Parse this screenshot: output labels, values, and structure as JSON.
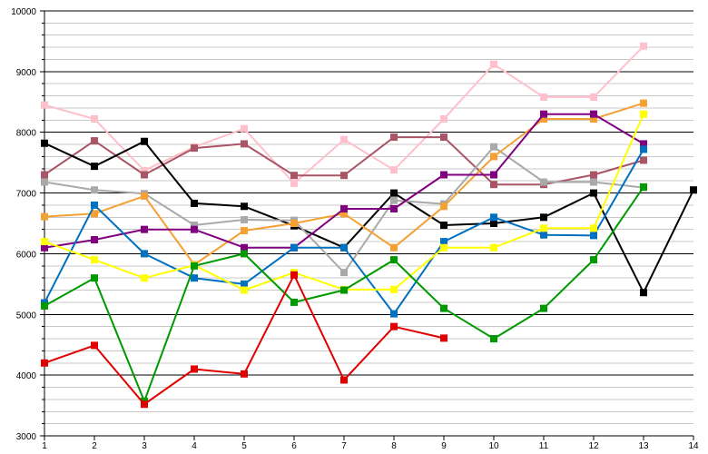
{
  "chart_data": {
    "type": "line",
    "title": "",
    "xlabel": "",
    "ylabel": "",
    "x": [
      1,
      2,
      3,
      4,
      5,
      6,
      7,
      8,
      9,
      10,
      11,
      12,
      13,
      14
    ],
    "x_tick_labels": [
      "1",
      "2",
      "3",
      "4",
      "5",
      "6",
      "7",
      "8",
      "9",
      "10",
      "11",
      "12",
      "13",
      "14"
    ],
    "xlim": [
      1,
      14
    ],
    "ylim": [
      3000,
      10000
    ],
    "y_ticks": [
      3000,
      4000,
      5000,
      6000,
      7000,
      8000,
      9000,
      10000
    ],
    "y_tick_labels": [
      "3000",
      "4000",
      "5000",
      "6000",
      "7000",
      "8000",
      "9000",
      "10000"
    ],
    "grid": "horizontal",
    "legend": "none",
    "marker": "square",
    "series": [
      {
        "color": "#ffc0cb",
        "values": [
          8450,
          8220,
          7370,
          7760,
          8060,
          7160,
          7880,
          7380,
          8220,
          9120,
          8580,
          8580,
          9420,
          null
        ]
      },
      {
        "color": "#aa5566",
        "values": [
          7300,
          7860,
          7300,
          7740,
          7810,
          7290,
          7290,
          7920,
          7920,
          7140,
          7140,
          7300,
          7540,
          null
        ]
      },
      {
        "color": "#000000",
        "values": [
          7820,
          7440,
          7850,
          6830,
          6780,
          6460,
          6100,
          7000,
          6470,
          6500,
          6600,
          7000,
          5360,
          7050
        ]
      },
      {
        "color": "#a9a9a9",
        "values": [
          7180,
          7050,
          6990,
          6470,
          6560,
          6550,
          5690,
          6880,
          6820,
          7760,
          7180,
          7180,
          7090,
          null
        ]
      },
      {
        "color": "#f5a033",
        "values": [
          6610,
          6660,
          6950,
          5820,
          6380,
          6500,
          6660,
          6100,
          6780,
          7600,
          8220,
          8220,
          8480,
          null
        ]
      },
      {
        "color": "#800080",
        "values": [
          6100,
          6230,
          6400,
          6400,
          6100,
          6100,
          6740,
          6740,
          7300,
          7300,
          8300,
          8300,
          7810,
          null
        ]
      },
      {
        "color": "#0070c0",
        "values": [
          5190,
          6800,
          6000,
          5600,
          5500,
          6100,
          6100,
          5010,
          6200,
          6600,
          6310,
          6300,
          7720,
          null
        ]
      },
      {
        "color": "#ffff00",
        "values": [
          6200,
          5900,
          5600,
          5810,
          5400,
          5690,
          5410,
          5410,
          6100,
          6100,
          6420,
          6420,
          8300,
          null
        ]
      },
      {
        "color": "#009900",
        "values": [
          5140,
          5600,
          3570,
          5800,
          6000,
          5200,
          5400,
          5900,
          5100,
          4600,
          5100,
          5900,
          7100,
          null
        ]
      },
      {
        "color": "#e00000",
        "values": [
          4200,
          4490,
          3520,
          4100,
          4020,
          5650,
          3920,
          4800,
          4610,
          null,
          null,
          null,
          null,
          null
        ]
      }
    ]
  }
}
